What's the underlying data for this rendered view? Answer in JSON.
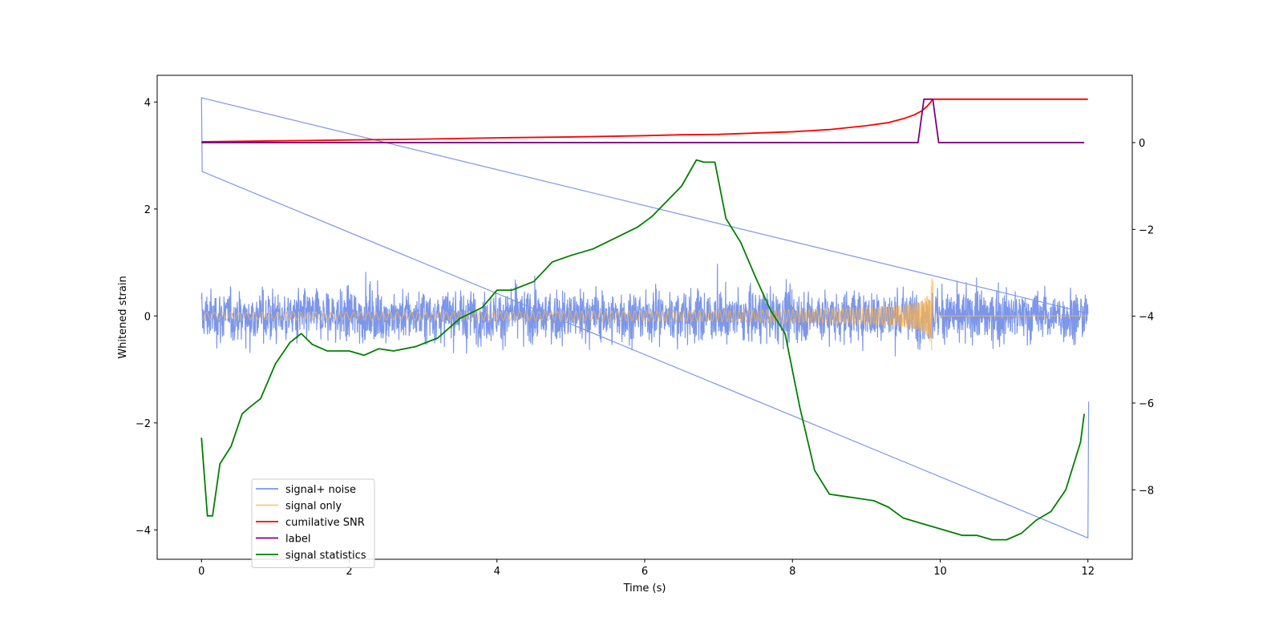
{
  "chart_data": {
    "type": "line",
    "xlabel": "Time (s)",
    "ylabel": "Whitened strain",
    "xlim": [
      -0.6,
      12.6
    ],
    "ylim": [
      -4.55,
      4.5
    ],
    "y2lim": [
      -9.6,
      1.55
    ],
    "xticks": [
      0,
      2,
      4,
      6,
      8,
      10,
      12
    ],
    "xtick_labels": [
      "0",
      "2",
      "4",
      "6",
      "8",
      "10",
      "12"
    ],
    "yticks": [
      -4,
      -2,
      0,
      2,
      4
    ],
    "ytick_labels": [
      "−4",
      "−2",
      "0",
      "2",
      "4"
    ],
    "y2ticks": [
      -8,
      -6,
      -4,
      -2,
      0
    ],
    "y2tick_labels": [
      "−8",
      "−6",
      "−4",
      "−2",
      "0"
    ],
    "grid": false,
    "legend_position": "lower-left",
    "series": [
      {
        "name": "signal+ noise",
        "axis": "left",
        "color": "#6d8be8",
        "noise_amplitude": 0.45,
        "noise_range": [
          0,
          12
        ],
        "edge_spikes": [
          [
            0.0,
            4.08
          ],
          [
            0.01,
            2.7
          ],
          [
            12.0,
            -4.15
          ],
          [
            12.01,
            -1.6
          ]
        ]
      },
      {
        "name": "signal only",
        "axis": "left",
        "color": "#ffb347",
        "chirp_start": 0,
        "chirp_end": 9.9,
        "chirp_peak_amplitude": 0.72
      },
      {
        "name": "cumilative SNR",
        "axis": "right",
        "color": "#ff0000",
        "x": [
          0,
          1,
          2,
          3,
          4,
          5,
          6,
          6.5,
          7,
          7.5,
          8,
          8.5,
          9,
          9.3,
          9.5,
          9.65,
          9.75,
          9.82,
          9.87,
          9.9,
          10,
          11,
          12
        ],
        "y": [
          0.02,
          0.04,
          0.06,
          0.08,
          0.11,
          0.13,
          0.16,
          0.18,
          0.19,
          0.22,
          0.25,
          0.3,
          0.39,
          0.46,
          0.55,
          0.64,
          0.73,
          0.83,
          0.93,
          1.0,
          1.0,
          1.0,
          1.0
        ]
      },
      {
        "name": "label",
        "axis": "right",
        "color": "#800080",
        "x": [
          0,
          9.7,
          9.78,
          9.9,
          9.98,
          11.95
        ],
        "y": [
          0,
          0,
          1.0,
          1.0,
          0,
          0
        ]
      },
      {
        "name": "signal statistics",
        "axis": "right",
        "color": "#008000",
        "x": [
          0,
          0.08,
          0.15,
          0.25,
          0.4,
          0.55,
          0.65,
          0.8,
          1.0,
          1.2,
          1.35,
          1.5,
          1.7,
          2.0,
          2.2,
          2.4,
          2.6,
          2.9,
          3.2,
          3.5,
          3.8,
          4.0,
          4.2,
          4.5,
          4.75,
          5.0,
          5.3,
          5.6,
          5.9,
          6.1,
          6.3,
          6.5,
          6.7,
          6.8,
          6.95,
          7.1,
          7.3,
          7.5,
          7.7,
          7.9,
          8.1,
          8.3,
          8.5,
          8.7,
          8.9,
          9.1,
          9.3,
          9.5,
          9.7,
          9.9,
          10.1,
          10.3,
          10.5,
          10.7,
          10.9,
          11.1,
          11.3,
          11.5,
          11.7,
          11.9,
          11.95
        ],
        "y": [
          -6.8,
          -8.6,
          -8.6,
          -7.4,
          -7.0,
          -6.25,
          -6.1,
          -5.9,
          -5.1,
          -4.6,
          -4.4,
          -4.65,
          -4.8,
          -4.8,
          -4.9,
          -4.75,
          -4.8,
          -4.7,
          -4.5,
          -4.05,
          -3.8,
          -3.4,
          -3.4,
          -3.2,
          -2.75,
          -2.6,
          -2.45,
          -2.2,
          -1.95,
          -1.7,
          -1.35,
          -1.0,
          -0.4,
          -0.45,
          -0.45,
          -1.75,
          -2.3,
          -3.1,
          -3.85,
          -4.4,
          -6.1,
          -7.55,
          -8.1,
          -8.15,
          -8.2,
          -8.25,
          -8.4,
          -8.65,
          -8.75,
          -8.85,
          -8.95,
          -9.05,
          -9.05,
          -9.15,
          -9.15,
          -9.0,
          -8.7,
          -8.5,
          -8.0,
          -6.9,
          -6.25
        ]
      }
    ]
  }
}
